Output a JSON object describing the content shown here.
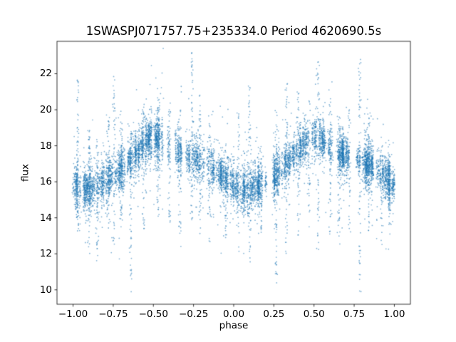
{
  "figure": {
    "background": "#ffffff"
  },
  "chart_data": {
    "type": "scatter",
    "title": "1SWASPJ071757.75+235334.0 Period 4620690.5s",
    "xlabel": "phase",
    "ylabel": "flux",
    "xlim": [
      -1.1,
      1.1
    ],
    "ylim": [
      9.2,
      23.8
    ],
    "grid": false,
    "legend": null,
    "x_ticks": {
      "values": [
        -1.0,
        -0.75,
        -0.5,
        -0.25,
        0.0,
        0.25,
        0.5,
        0.75,
        1.0
      ],
      "labels": [
        "−1.00",
        "−0.75",
        "−0.50",
        "−0.25",
        "0.00",
        "0.25",
        "0.50",
        "0.75",
        "1.00"
      ]
    },
    "y_ticks": {
      "values": [
        10,
        12,
        14,
        16,
        18,
        20,
        22
      ],
      "labels": [
        "10",
        "12",
        "14",
        "16",
        "18",
        "20",
        "22"
      ]
    },
    "point_color": "#1f77b4",
    "point_alpha": 0.55,
    "point_radius": 0.9,
    "seed": 1148,
    "model": {
      "description": "Folded light curve, two cycles shown (phase -1 to 1); flux vs phase with nightly column scatter and vertical outlier streaks",
      "profile_phase": [
        0.0,
        0.05,
        0.1,
        0.15,
        0.2,
        0.25,
        0.3,
        0.35,
        0.4,
        0.45,
        0.5,
        0.55,
        0.6,
        0.65,
        0.7,
        0.75,
        0.8,
        0.85,
        0.9,
        0.95,
        1.0
      ],
      "profile_flux": [
        15.8,
        15.6,
        15.6,
        15.8,
        16.0,
        16.3,
        16.7,
        17.2,
        17.7,
        18.2,
        18.5,
        18.3,
        17.9,
        17.6,
        17.4,
        17.3,
        17.1,
        16.9,
        16.6,
        16.2,
        15.8
      ],
      "cloud": {
        "n_columns": 300,
        "x_jitter": 0.0035,
        "sigma_min": 0.35,
        "sigma_max": 0.8,
        "pts_min": 15,
        "pts_max": 45,
        "tail_prob": 0.08,
        "tail_scale": 1.6
      },
      "streaks": [
        {
          "phase": -0.97,
          "ymin": 13.0,
          "ymax": 21.7,
          "n": 60
        },
        {
          "phase": -0.9,
          "ymin": 12.0,
          "ymax": 19.0,
          "n": 50
        },
        {
          "phase": -0.85,
          "ymin": 11.5,
          "ymax": 18.5,
          "n": 45
        },
        {
          "phase": -0.78,
          "ymin": 13.0,
          "ymax": 19.5,
          "n": 45
        },
        {
          "phase": -0.745,
          "ymin": 12.5,
          "ymax": 22.6,
          "n": 55
        },
        {
          "phase": -0.7,
          "ymin": 13.5,
          "ymax": 20.0,
          "n": 40
        },
        {
          "phase": -0.64,
          "ymin": 9.8,
          "ymax": 19.0,
          "n": 50
        },
        {
          "phase": -0.56,
          "ymin": 13.0,
          "ymax": 20.3,
          "n": 40
        },
        {
          "phase": -0.47,
          "ymin": 14.0,
          "ymax": 20.5,
          "n": 40
        },
        {
          "phase": -0.4,
          "ymin": 13.5,
          "ymax": 20.2,
          "n": 35
        },
        {
          "phase": -0.335,
          "ymin": 13.0,
          "ymax": 20.0,
          "n": 35
        },
        {
          "phase": -0.26,
          "ymin": 13.5,
          "ymax": 23.2,
          "n": 60
        },
        {
          "phase": -0.21,
          "ymin": 13.0,
          "ymax": 21.0,
          "n": 40
        },
        {
          "phase": -0.15,
          "ymin": 12.5,
          "ymax": 19.5,
          "n": 35
        },
        {
          "phase": -0.05,
          "ymin": 12.8,
          "ymax": 18.5,
          "n": 30
        },
        {
          "phase": 0.03,
          "ymin": 12.0,
          "ymax": 19.8,
          "n": 40
        },
        {
          "phase": 0.1,
          "ymin": 11.0,
          "ymax": 21.6,
          "n": 50
        },
        {
          "phase": 0.17,
          "ymin": 13.0,
          "ymax": 18.0,
          "n": 30
        },
        {
          "phase": 0.265,
          "ymin": 9.8,
          "ymax": 20.0,
          "n": 55
        },
        {
          "phase": 0.33,
          "ymin": 12.0,
          "ymax": 21.5,
          "n": 50
        },
        {
          "phase": 0.4,
          "ymin": 13.0,
          "ymax": 21.0,
          "n": 40
        },
        {
          "phase": 0.47,
          "ymin": 13.5,
          "ymax": 20.5,
          "n": 40
        },
        {
          "phase": 0.525,
          "ymin": 12.0,
          "ymax": 22.8,
          "n": 55
        },
        {
          "phase": 0.6,
          "ymin": 13.0,
          "ymax": 20.5,
          "n": 40
        },
        {
          "phase": 0.655,
          "ymin": 12.5,
          "ymax": 19.8,
          "n": 40
        },
        {
          "phase": 0.72,
          "ymin": 13.0,
          "ymax": 20.0,
          "n": 35
        },
        {
          "phase": 0.785,
          "ymin": 9.9,
          "ymax": 23.1,
          "n": 65
        },
        {
          "phase": 0.84,
          "ymin": 13.0,
          "ymax": 20.0,
          "n": 35
        },
        {
          "phase": 0.92,
          "ymin": 12.5,
          "ymax": 18.5,
          "n": 35
        },
        {
          "phase": 0.97,
          "ymin": 13.5,
          "ymax": 17.5,
          "n": 25
        }
      ]
    }
  }
}
